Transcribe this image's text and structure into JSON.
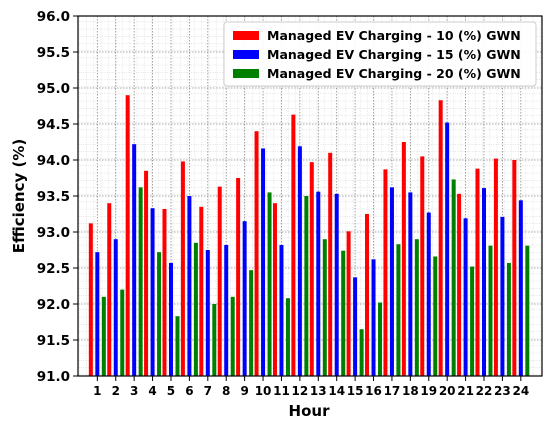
{
  "chart_data": {
    "type": "bar",
    "title": "",
    "xlabel": "Hour",
    "ylabel": "Efficiency (%)",
    "ylim": [
      91.0,
      96.0
    ],
    "y_ticks": [
      "91.0",
      "91.5",
      "92.0",
      "92.5",
      "93.0",
      "93.5",
      "94.0",
      "94.5",
      "95.0",
      "95.5",
      "96.0"
    ],
    "categories": [
      "1",
      "2",
      "3",
      "4",
      "5",
      "6",
      "7",
      "8",
      "9",
      "10",
      "11",
      "12",
      "13",
      "14",
      "15",
      "16",
      "17",
      "18",
      "19",
      "20",
      "21",
      "22",
      "23",
      "24"
    ],
    "grid": true,
    "legend_position": "top-right",
    "series": [
      {
        "name": "Managed EV Charging - 10 (%) GWN",
        "color": "#ff0000",
        "values": [
          93.12,
          93.4,
          94.9,
          93.85,
          93.32,
          93.98,
          93.35,
          93.63,
          93.75,
          94.4,
          93.4,
          94.63,
          93.97,
          94.1,
          93.01,
          93.25,
          93.87,
          94.25,
          94.05,
          94.83,
          93.53,
          93.88,
          94.02,
          94.0
        ]
      },
      {
        "name": "Managed EV Charging - 15 (%) GWN",
        "color": "#0000ff",
        "values": [
          92.72,
          92.9,
          94.22,
          93.33,
          92.57,
          93.5,
          92.75,
          92.82,
          93.15,
          94.16,
          92.82,
          94.19,
          93.56,
          93.53,
          92.37,
          92.62,
          93.62,
          93.55,
          93.27,
          94.52,
          93.19,
          93.61,
          93.21,
          93.44
        ]
      },
      {
        "name": "Managed EV Charging - 20 (%) GWN",
        "color": "#008000",
        "values": [
          92.1,
          92.2,
          93.62,
          92.72,
          91.83,
          92.85,
          92.0,
          92.1,
          92.47,
          93.55,
          92.08,
          93.5,
          92.9,
          92.74,
          91.65,
          92.02,
          92.83,
          92.9,
          92.66,
          93.73,
          92.52,
          92.81,
          92.57,
          92.81
        ]
      }
    ]
  }
}
